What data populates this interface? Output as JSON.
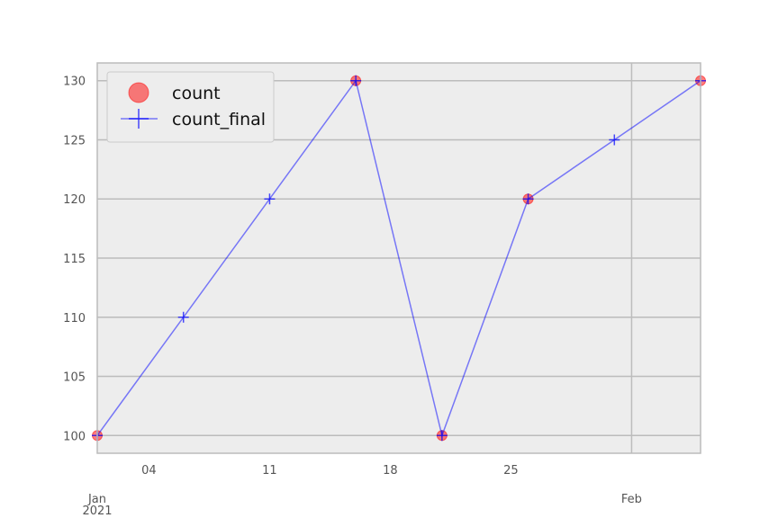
{
  "chart_data": {
    "type": "line",
    "title": "",
    "xlabel": "",
    "ylabel": "",
    "x_axis_type": "date",
    "xlim": [
      "2021-01-01",
      "2021-02-05"
    ],
    "ylim": [
      98.5,
      131.5
    ],
    "grid": true,
    "legend_position": "top-left",
    "background_color": "#ededed",
    "x_ticks": [
      {
        "date": "2021-01-04",
        "label": "04"
      },
      {
        "date": "2021-01-11",
        "label": "11"
      },
      {
        "date": "2021-01-18",
        "label": "18"
      },
      {
        "date": "2021-01-25",
        "label": "25"
      },
      {
        "date": "2021-02-01",
        "label": "Feb"
      }
    ],
    "x_major_label": {
      "date": "2021-01-01",
      "line1": "Jan",
      "line2": "2021"
    },
    "y_ticks": [
      100,
      105,
      110,
      115,
      120,
      125,
      130
    ],
    "series": [
      {
        "name": "count",
        "kind": "scatter",
        "color": "#ff0000",
        "points": [
          {
            "x": "2021-01-01",
            "y": 100
          },
          {
            "x": "2021-01-16",
            "y": 130
          },
          {
            "x": "2021-01-21",
            "y": 100
          },
          {
            "x": "2021-01-26",
            "y": 120
          },
          {
            "x": "2021-02-05",
            "y": 130
          }
        ]
      },
      {
        "name": "count_final",
        "kind": "line",
        "marker": "plus",
        "color": "#0000ff",
        "points": [
          {
            "x": "2021-01-01",
            "y": 100
          },
          {
            "x": "2021-01-06",
            "y": 110
          },
          {
            "x": "2021-01-11",
            "y": 120
          },
          {
            "x": "2021-01-16",
            "y": 130
          },
          {
            "x": "2021-01-21",
            "y": 100
          },
          {
            "x": "2021-01-26",
            "y": 120
          },
          {
            "x": "2021-01-31",
            "y": 125
          },
          {
            "x": "2021-02-05",
            "y": 130
          }
        ]
      }
    ]
  }
}
